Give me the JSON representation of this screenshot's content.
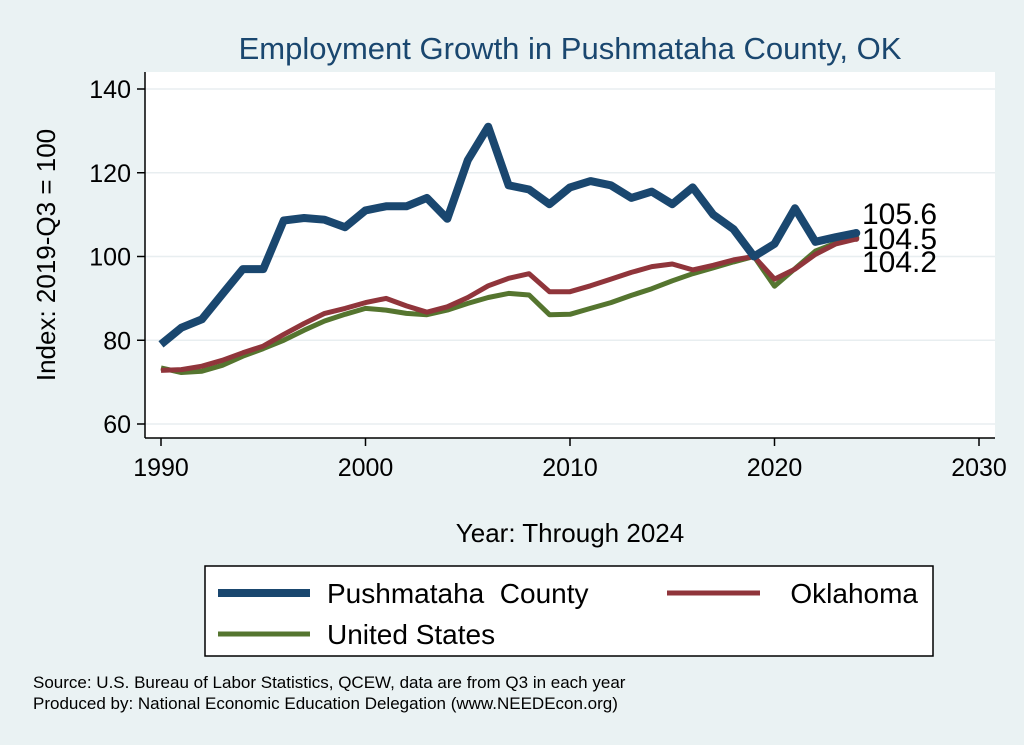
{
  "chart_data": {
    "type": "line",
    "title": "Employment Growth in Pushmataha County, OK",
    "xlabel": "Year: Through 2024",
    "ylabel": "Index: 2019-Q3 = 100",
    "xlim": [
      1990,
      2030
    ],
    "ylim": [
      60,
      140
    ],
    "x_ticks": [
      "1990",
      "2000",
      "2010",
      "2020",
      "2030"
    ],
    "y_ticks": [
      "60",
      "80",
      "100",
      "120",
      "140"
    ],
    "x": [
      1990,
      1991,
      1992,
      1993,
      1994,
      1995,
      1996,
      1997,
      1998,
      1999,
      2000,
      2001,
      2002,
      2003,
      2004,
      2005,
      2006,
      2007,
      2008,
      2009,
      2010,
      2011,
      2012,
      2013,
      2014,
      2015,
      2016,
      2017,
      2018,
      2019,
      2020,
      2021,
      2022,
      2023,
      2024
    ],
    "series": [
      {
        "name": "Pushmataha  County",
        "color": "#1a476f",
        "width": 8,
        "end_label": "105.6",
        "values": [
          79,
          83,
          85,
          91,
          97,
          97,
          108.6,
          109.2,
          108.8,
          107,
          111,
          112,
          112,
          114,
          109,
          123,
          131,
          117,
          116,
          112.5,
          116.5,
          118,
          117,
          114,
          115.5,
          112.5,
          116.5,
          110,
          106.5,
          100,
          103,
          111.5,
          103.5,
          104.6,
          105.6
        ]
      },
      {
        "name": "Oklahoma",
        "color": "#90353b",
        "width": 5,
        "end_label": "104.2",
        "values": [
          72.8,
          73,
          73.8,
          75.2,
          77,
          78.6,
          81.4,
          84,
          86.4,
          87.6,
          89,
          90,
          88.2,
          86.7,
          88,
          90.2,
          93,
          94.8,
          95.9,
          91.6,
          91.6,
          93,
          94.6,
          96.2,
          97.6,
          98.2,
          96.8,
          97.9,
          99.2,
          100,
          94.6,
          97,
          100.5,
          103,
          104.2
        ]
      },
      {
        "name": "United States",
        "color": "#55752f",
        "width": 5,
        "end_label": "104.5",
        "values": [
          73.4,
          72.3,
          72.6,
          74,
          76.2,
          78,
          80,
          82.4,
          84.6,
          86.2,
          87.6,
          87.2,
          86.4,
          86.1,
          87.2,
          88.8,
          90.2,
          91.2,
          90.8,
          86.1,
          86.2,
          87.6,
          89,
          90.7,
          92.3,
          94.2,
          95.9,
          97.3,
          98.7,
          100,
          92.9,
          97.1,
          101.3,
          103.2,
          104.5
        ]
      }
    ],
    "legend_position": "bottom"
  },
  "source_note": "Source: U.S. Bureau of Labor Statistics, QCEW, data are from Q3 in each year",
  "produced_note": "Produced by: National Economic Education Delegation (www.NEEDEcon.org)"
}
